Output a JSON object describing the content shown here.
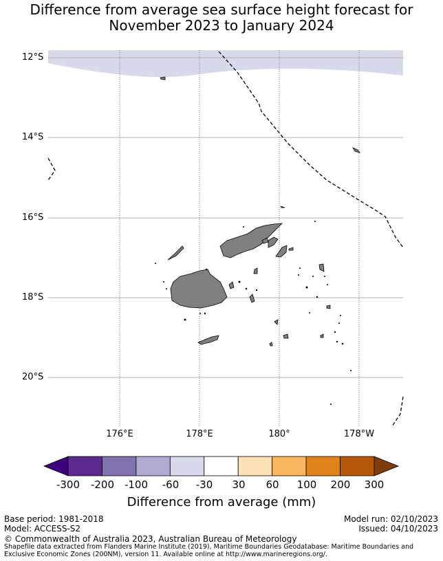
{
  "title_line1": "Difference from average sea surface height forecast for",
  "title_line2": "November 2023 to January 2024",
  "map": {
    "lat_labels": [
      "12°S",
      "14°S",
      "16°S",
      "18°S",
      "20°S"
    ],
    "lon_labels": [
      "176°E",
      "178°E",
      "180°",
      "178°W"
    ],
    "anomaly_band_color": "#d8d9ea",
    "land_color": "#808080",
    "eez_boundary_style": "dashed"
  },
  "colorbar": {
    "title": "Difference from average (mm)",
    "tick_labels": [
      "-300",
      "-200",
      "-100",
      "-60",
      "-30",
      "30",
      "60",
      "100",
      "200",
      "300"
    ],
    "colors": [
      "#3f007d",
      "#5c2a8e",
      "#8272ad",
      "#b1abd2",
      "#d8d9ea",
      "#ffffff",
      "#fde0b6",
      "#fbb661",
      "#e0821a",
      "#b45909",
      "#7f3b08"
    ]
  },
  "footer": {
    "base_period": "Base period: 1981-2018",
    "model": "Model: ACCESS-S2",
    "model_run": "Model run: 02/10/2023",
    "issued": "Issued: 04/10/2023",
    "copyright": "© Commonwealth of Australia 2023, Australian Bureau of Meteorology",
    "source": "Shapefile data extracted from Flanders Marine Institute (2019), Maritime Boundaries Geodatabase: Maritime Boundaries and Exclusive Economic Zones (200NM), version 11. Available online at http://www.marineregions.org/."
  }
}
